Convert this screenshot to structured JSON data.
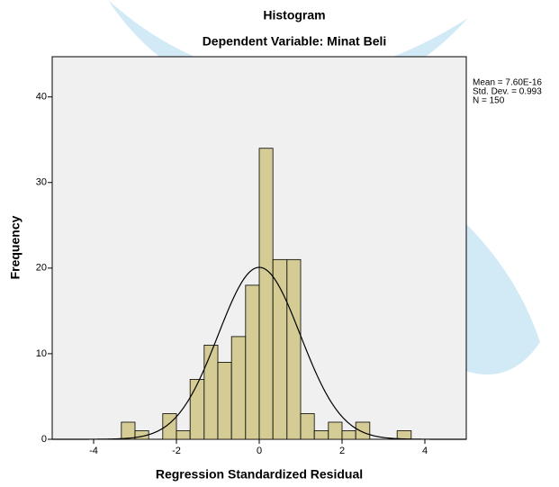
{
  "chart_data": {
    "type": "histogram",
    "title": "Histogram",
    "subtitle": "Dependent Variable: Minat Beli",
    "x_label": "Regression Standardized Residual",
    "y_label": "Frequency",
    "bins": [
      -3.33,
      -3,
      -2.67,
      -2.33,
      -2,
      -1.67,
      -1.33,
      -1,
      -0.67,
      -0.33,
      0,
      0.33,
      0.67,
      1,
      1.33,
      1.67,
      2,
      2.33,
      2.67,
      3,
      3.33,
      3.67
    ],
    "counts": [
      2,
      1,
      0,
      3,
      1,
      7,
      11,
      9,
      12,
      18,
      34,
      21,
      21,
      3,
      1,
      2,
      1,
      2,
      0,
      0,
      1
    ],
    "color": "#d4cc94",
    "xlim": [
      -5,
      5
    ],
    "xticks": [
      -4,
      -2,
      0,
      2,
      4
    ],
    "ylim": [
      0,
      44.7
    ],
    "yticks": [
      0,
      10,
      20,
      30,
      40
    ],
    "curve": {
      "mean": 7.6e-16,
      "sd": 0.993,
      "n": 150
    },
    "stats": [
      "Mean = 7.60E-16",
      "Std. Dev. = 0.993",
      "N = 150"
    ]
  }
}
